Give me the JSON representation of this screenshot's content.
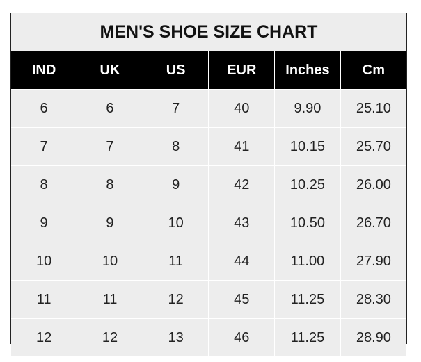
{
  "title": "MEN'S SHOE SIZE CHART",
  "headers": [
    "IND",
    "UK",
    "US",
    "EUR",
    "Inches",
    "Cm"
  ],
  "rows": [
    [
      "6",
      "6",
      "7",
      "40",
      "9.90",
      "25.10"
    ],
    [
      "7",
      "7",
      "8",
      "41",
      "10.15",
      "25.70"
    ],
    [
      "8",
      "8",
      "9",
      "42",
      "10.25",
      "26.00"
    ],
    [
      "9",
      "9",
      "10",
      "43",
      "10.50",
      "26.70"
    ],
    [
      "10",
      "10",
      "11",
      "44",
      "11.00",
      "27.90"
    ],
    [
      "11",
      "11",
      "12",
      "45",
      "11.25",
      "28.30"
    ],
    [
      "12",
      "12",
      "13",
      "46",
      "11.25",
      "28.90"
    ]
  ],
  "colors": {
    "header_bg": "#000000",
    "header_text": "#ffffff",
    "cell_bg": "#ededed"
  }
}
